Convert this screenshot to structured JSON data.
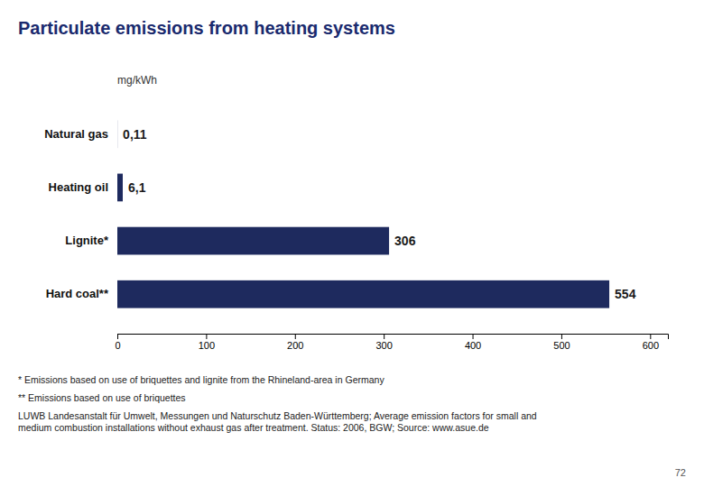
{
  "chart_data": {
    "type": "bar",
    "orientation": "horizontal",
    "title": "Particulate emissions from heating systems",
    "xlabel": "mg/kWh",
    "categories": [
      "Hard coal**",
      "Lignite*",
      "Heating oil",
      "Natural gas"
    ],
    "values": [
      554,
      306,
      6.1,
      0.11
    ],
    "value_labels": [
      "554",
      "306",
      "6,1",
      "0,11"
    ],
    "data_labels": true,
    "color": "#1e2a5e",
    "xlim": [
      0,
      620
    ],
    "xticks": [
      0,
      100,
      200,
      300,
      400,
      500,
      600
    ],
    "grid": false,
    "annotations": [
      "* Emissions based on use of briquettes and lignite from the Rhineland-area in Germany",
      "** Emissions based on use of briquettes",
      "LUWB Landesanstalt für Umwelt, Messungen und Naturschutz Baden-Württemberg; Average emission factors for small and\nmedium combustion installations without exhaust gas after treatment. Status: 2006, BGW;  Source: www.asue.de",
      "72"
    ]
  }
}
